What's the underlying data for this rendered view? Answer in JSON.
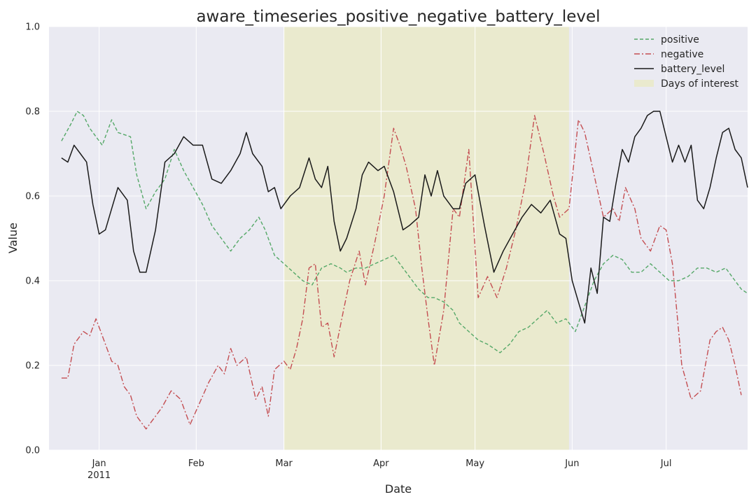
{
  "chart_data": {
    "type": "line",
    "title": "aware_timeseries_positive_negative_battery_level",
    "xlabel": "Date",
    "ylabel": "Value",
    "ylim": [
      0,
      1
    ],
    "xlim": [
      "2010-12-16",
      "2011-07-27"
    ],
    "grid": true,
    "legend_position": "top-right",
    "x_ticks": [
      {
        "date": "2011-01-01",
        "label": "Jan",
        "sublabel": "2011"
      },
      {
        "date": "2011-02-01",
        "label": "Feb",
        "sublabel": ""
      },
      {
        "date": "2011-03-01",
        "label": "Mar",
        "sublabel": ""
      },
      {
        "date": "2011-04-01",
        "label": "Apr",
        "sublabel": ""
      },
      {
        "date": "2011-05-01",
        "label": "May",
        "sublabel": ""
      },
      {
        "date": "2011-06-01",
        "label": "Jun",
        "sublabel": ""
      },
      {
        "date": "2011-07-01",
        "label": "Jul",
        "sublabel": ""
      }
    ],
    "y_ticks": [
      "0.0",
      "0.2",
      "0.4",
      "0.6",
      "0.8",
      "1.0"
    ],
    "highlight": {
      "name": "Days of interest",
      "start": "2011-03-01",
      "end": "2011-05-31",
      "color": "#eaeace"
    },
    "series": [
      {
        "name": "positive",
        "color": "#55a868",
        "style": "dashed",
        "points": [
          [
            "2010-12-20",
            0.73
          ],
          [
            "2010-12-23",
            0.77
          ],
          [
            "2010-12-25",
            0.8
          ],
          [
            "2010-12-27",
            0.79
          ],
          [
            "2010-12-29",
            0.76
          ],
          [
            "2011-01-02",
            0.72
          ],
          [
            "2011-01-05",
            0.78
          ],
          [
            "2011-01-07",
            0.75
          ],
          [
            "2011-01-11",
            0.74
          ],
          [
            "2011-01-13",
            0.65
          ],
          [
            "2011-01-16",
            0.57
          ],
          [
            "2011-01-19",
            0.61
          ],
          [
            "2011-01-22",
            0.64
          ],
          [
            "2011-01-25",
            0.71
          ],
          [
            "2011-01-28",
            0.66
          ],
          [
            "2011-01-31",
            0.62
          ],
          [
            "2011-02-03",
            0.58
          ],
          [
            "2011-02-06",
            0.53
          ],
          [
            "2011-02-09",
            0.5
          ],
          [
            "2011-02-12",
            0.47
          ],
          [
            "2011-02-15",
            0.5
          ],
          [
            "2011-02-18",
            0.52
          ],
          [
            "2011-02-21",
            0.55
          ],
          [
            "2011-02-23",
            0.52
          ],
          [
            "2011-02-26",
            0.46
          ],
          [
            "2011-03-01",
            0.44
          ],
          [
            "2011-03-04",
            0.42
          ],
          [
            "2011-03-07",
            0.4
          ],
          [
            "2011-03-10",
            0.39
          ],
          [
            "2011-03-13",
            0.43
          ],
          [
            "2011-03-16",
            0.44
          ],
          [
            "2011-03-19",
            0.43
          ],
          [
            "2011-03-21",
            0.42
          ],
          [
            "2011-03-24",
            0.43
          ],
          [
            "2011-03-27",
            0.43
          ],
          [
            "2011-03-30",
            0.44
          ],
          [
            "2011-04-02",
            0.45
          ],
          [
            "2011-04-05",
            0.46
          ],
          [
            "2011-04-08",
            0.43
          ],
          [
            "2011-04-11",
            0.4
          ],
          [
            "2011-04-13",
            0.38
          ],
          [
            "2011-04-16",
            0.36
          ],
          [
            "2011-04-18",
            0.36
          ],
          [
            "2011-04-21",
            0.35
          ],
          [
            "2011-04-24",
            0.33
          ],
          [
            "2011-04-26",
            0.3
          ],
          [
            "2011-04-29",
            0.28
          ],
          [
            "2011-05-02",
            0.26
          ],
          [
            "2011-05-05",
            0.25
          ],
          [
            "2011-05-07",
            0.24
          ],
          [
            "2011-05-09",
            0.23
          ],
          [
            "2011-05-12",
            0.25
          ],
          [
            "2011-05-15",
            0.28
          ],
          [
            "2011-05-18",
            0.29
          ],
          [
            "2011-05-21",
            0.31
          ],
          [
            "2011-05-24",
            0.33
          ],
          [
            "2011-05-27",
            0.3
          ],
          [
            "2011-05-30",
            0.31
          ],
          [
            "2011-06-02",
            0.28
          ],
          [
            "2011-06-05",
            0.34
          ],
          [
            "2011-06-08",
            0.4
          ],
          [
            "2011-06-11",
            0.44
          ],
          [
            "2011-06-14",
            0.46
          ],
          [
            "2011-06-17",
            0.45
          ],
          [
            "2011-06-20",
            0.42
          ],
          [
            "2011-06-23",
            0.42
          ],
          [
            "2011-06-26",
            0.44
          ],
          [
            "2011-06-29",
            0.42
          ],
          [
            "2011-07-02",
            0.4
          ],
          [
            "2011-07-05",
            0.4
          ],
          [
            "2011-07-08",
            0.41
          ],
          [
            "2011-07-11",
            0.43
          ],
          [
            "2011-07-14",
            0.43
          ],
          [
            "2011-07-17",
            0.42
          ],
          [
            "2011-07-20",
            0.43
          ],
          [
            "2011-07-22",
            0.41
          ],
          [
            "2011-07-25",
            0.38
          ],
          [
            "2011-07-27",
            0.37
          ]
        ]
      },
      {
        "name": "negative",
        "color": "#c44e52",
        "style": "dashdot",
        "points": [
          [
            "2010-12-20",
            0.17
          ],
          [
            "2010-12-22",
            0.17
          ],
          [
            "2010-12-24",
            0.25
          ],
          [
            "2010-12-27",
            0.28
          ],
          [
            "2010-12-29",
            0.27
          ],
          [
            "2010-12-31",
            0.31
          ],
          [
            "2011-01-03",
            0.25
          ],
          [
            "2011-01-05",
            0.21
          ],
          [
            "2011-01-07",
            0.2
          ],
          [
            "2011-01-09",
            0.15
          ],
          [
            "2011-01-11",
            0.13
          ],
          [
            "2011-01-13",
            0.08
          ],
          [
            "2011-01-16",
            0.05
          ],
          [
            "2011-01-18",
            0.07
          ],
          [
            "2011-01-21",
            0.1
          ],
          [
            "2011-01-24",
            0.14
          ],
          [
            "2011-01-27",
            0.12
          ],
          [
            "2011-01-30",
            0.06
          ],
          [
            "2011-02-02",
            0.11
          ],
          [
            "2011-02-05",
            0.16
          ],
          [
            "2011-02-08",
            0.2
          ],
          [
            "2011-02-10",
            0.18
          ],
          [
            "2011-02-12",
            0.24
          ],
          [
            "2011-02-14",
            0.2
          ],
          [
            "2011-02-17",
            0.22
          ],
          [
            "2011-02-20",
            0.12
          ],
          [
            "2011-02-22",
            0.15
          ],
          [
            "2011-02-24",
            0.08
          ],
          [
            "2011-02-26",
            0.19
          ],
          [
            "2011-03-01",
            0.21
          ],
          [
            "2011-03-03",
            0.19
          ],
          [
            "2011-03-05",
            0.24
          ],
          [
            "2011-03-07",
            0.31
          ],
          [
            "2011-03-09",
            0.43
          ],
          [
            "2011-03-11",
            0.44
          ],
          [
            "2011-03-13",
            0.29
          ],
          [
            "2011-03-15",
            0.3
          ],
          [
            "2011-03-17",
            0.22
          ],
          [
            "2011-03-20",
            0.33
          ],
          [
            "2011-03-22",
            0.4
          ],
          [
            "2011-03-25",
            0.47
          ],
          [
            "2011-03-27",
            0.39
          ],
          [
            "2011-03-30",
            0.49
          ],
          [
            "2011-04-02",
            0.6
          ],
          [
            "2011-04-05",
            0.76
          ],
          [
            "2011-04-07",
            0.72
          ],
          [
            "2011-04-09",
            0.67
          ],
          [
            "2011-04-12",
            0.57
          ],
          [
            "2011-04-14",
            0.43
          ],
          [
            "2011-04-16",
            0.31
          ],
          [
            "2011-04-18",
            0.2
          ],
          [
            "2011-04-21",
            0.33
          ],
          [
            "2011-04-24",
            0.57
          ],
          [
            "2011-04-26",
            0.55
          ],
          [
            "2011-04-29",
            0.71
          ],
          [
            "2011-05-02",
            0.36
          ],
          [
            "2011-05-05",
            0.41
          ],
          [
            "2011-05-08",
            0.36
          ],
          [
            "2011-05-11",
            0.43
          ],
          [
            "2011-05-14",
            0.52
          ],
          [
            "2011-05-17",
            0.63
          ],
          [
            "2011-05-20",
            0.79
          ],
          [
            "2011-05-23",
            0.7
          ],
          [
            "2011-05-26",
            0.6
          ],
          [
            "2011-05-28",
            0.55
          ],
          [
            "2011-05-31",
            0.57
          ],
          [
            "2011-06-03",
            0.78
          ],
          [
            "2011-06-05",
            0.75
          ],
          [
            "2011-06-08",
            0.65
          ],
          [
            "2011-06-11",
            0.55
          ],
          [
            "2011-06-14",
            0.57
          ],
          [
            "2011-06-16",
            0.54
          ],
          [
            "2011-06-18",
            0.62
          ],
          [
            "2011-06-21",
            0.57
          ],
          [
            "2011-06-23",
            0.5
          ],
          [
            "2011-06-26",
            0.47
          ],
          [
            "2011-06-29",
            0.53
          ],
          [
            "2011-07-01",
            0.52
          ],
          [
            "2011-07-03",
            0.44
          ],
          [
            "2011-07-06",
            0.2
          ],
          [
            "2011-07-09",
            0.12
          ],
          [
            "2011-07-12",
            0.14
          ],
          [
            "2011-07-15",
            0.26
          ],
          [
            "2011-07-17",
            0.28
          ],
          [
            "2011-07-19",
            0.29
          ],
          [
            "2011-07-21",
            0.26
          ],
          [
            "2011-07-23",
            0.2
          ],
          [
            "2011-07-25",
            0.13
          ]
        ]
      },
      {
        "name": "battery_level",
        "color": "#1a1a1a",
        "style": "solid",
        "points": [
          [
            "2010-12-20",
            0.69
          ],
          [
            "2010-12-22",
            0.68
          ],
          [
            "2010-12-24",
            0.72
          ],
          [
            "2010-12-26",
            0.7
          ],
          [
            "2010-12-28",
            0.68
          ],
          [
            "2010-12-30",
            0.58
          ],
          [
            "2011-01-01",
            0.51
          ],
          [
            "2011-01-03",
            0.52
          ],
          [
            "2011-01-05",
            0.57
          ],
          [
            "2011-01-07",
            0.62
          ],
          [
            "2011-01-10",
            0.59
          ],
          [
            "2011-01-12",
            0.47
          ],
          [
            "2011-01-14",
            0.42
          ],
          [
            "2011-01-16",
            0.42
          ],
          [
            "2011-01-19",
            0.52
          ],
          [
            "2011-01-22",
            0.68
          ],
          [
            "2011-01-25",
            0.7
          ],
          [
            "2011-01-28",
            0.74
          ],
          [
            "2011-01-31",
            0.72
          ],
          [
            "2011-02-03",
            0.72
          ],
          [
            "2011-02-06",
            0.64
          ],
          [
            "2011-02-09",
            0.63
          ],
          [
            "2011-02-12",
            0.66
          ],
          [
            "2011-02-15",
            0.7
          ],
          [
            "2011-02-17",
            0.75
          ],
          [
            "2011-02-19",
            0.7
          ],
          [
            "2011-02-22",
            0.67
          ],
          [
            "2011-02-24",
            0.61
          ],
          [
            "2011-02-26",
            0.62
          ],
          [
            "2011-02-28",
            0.57
          ],
          [
            "2011-03-03",
            0.6
          ],
          [
            "2011-03-06",
            0.62
          ],
          [
            "2011-03-09",
            0.69
          ],
          [
            "2011-03-11",
            0.64
          ],
          [
            "2011-03-13",
            0.62
          ],
          [
            "2011-03-15",
            0.67
          ],
          [
            "2011-03-17",
            0.54
          ],
          [
            "2011-03-19",
            0.47
          ],
          [
            "2011-03-21",
            0.5
          ],
          [
            "2011-03-24",
            0.57
          ],
          [
            "2011-03-26",
            0.65
          ],
          [
            "2011-03-28",
            0.68
          ],
          [
            "2011-03-31",
            0.66
          ],
          [
            "2011-04-02",
            0.67
          ],
          [
            "2011-04-05",
            0.61
          ],
          [
            "2011-04-08",
            0.52
          ],
          [
            "2011-04-10",
            0.53
          ],
          [
            "2011-04-13",
            0.55
          ],
          [
            "2011-04-15",
            0.65
          ],
          [
            "2011-04-17",
            0.6
          ],
          [
            "2011-04-19",
            0.66
          ],
          [
            "2011-04-21",
            0.6
          ],
          [
            "2011-04-24",
            0.57
          ],
          [
            "2011-04-26",
            0.57
          ],
          [
            "2011-04-28",
            0.63
          ],
          [
            "2011-05-01",
            0.65
          ],
          [
            "2011-05-04",
            0.53
          ],
          [
            "2011-05-07",
            0.42
          ],
          [
            "2011-05-10",
            0.47
          ],
          [
            "2011-05-13",
            0.51
          ],
          [
            "2011-05-16",
            0.55
          ],
          [
            "2011-05-19",
            0.58
          ],
          [
            "2011-05-22",
            0.56
          ],
          [
            "2011-05-25",
            0.59
          ],
          [
            "2011-05-28",
            0.51
          ],
          [
            "2011-05-30",
            0.5
          ],
          [
            "2011-06-01",
            0.4
          ],
          [
            "2011-06-03",
            0.35
          ],
          [
            "2011-06-05",
            0.3
          ],
          [
            "2011-06-07",
            0.43
          ],
          [
            "2011-06-09",
            0.37
          ],
          [
            "2011-06-11",
            0.55
          ],
          [
            "2011-06-13",
            0.54
          ],
          [
            "2011-06-15",
            0.63
          ],
          [
            "2011-06-17",
            0.71
          ],
          [
            "2011-06-19",
            0.68
          ],
          [
            "2011-06-21",
            0.74
          ],
          [
            "2011-06-23",
            0.76
          ],
          [
            "2011-06-25",
            0.79
          ],
          [
            "2011-06-27",
            0.8
          ],
          [
            "2011-06-29",
            0.8
          ],
          [
            "2011-07-01",
            0.74
          ],
          [
            "2011-07-03",
            0.68
          ],
          [
            "2011-07-05",
            0.72
          ],
          [
            "2011-07-07",
            0.68
          ],
          [
            "2011-07-09",
            0.72
          ],
          [
            "2011-07-11",
            0.59
          ],
          [
            "2011-07-13",
            0.57
          ],
          [
            "2011-07-15",
            0.62
          ],
          [
            "2011-07-17",
            0.69
          ],
          [
            "2011-07-19",
            0.75
          ],
          [
            "2011-07-21",
            0.76
          ],
          [
            "2011-07-23",
            0.71
          ],
          [
            "2011-07-25",
            0.69
          ],
          [
            "2011-07-27",
            0.62
          ]
        ]
      }
    ]
  }
}
